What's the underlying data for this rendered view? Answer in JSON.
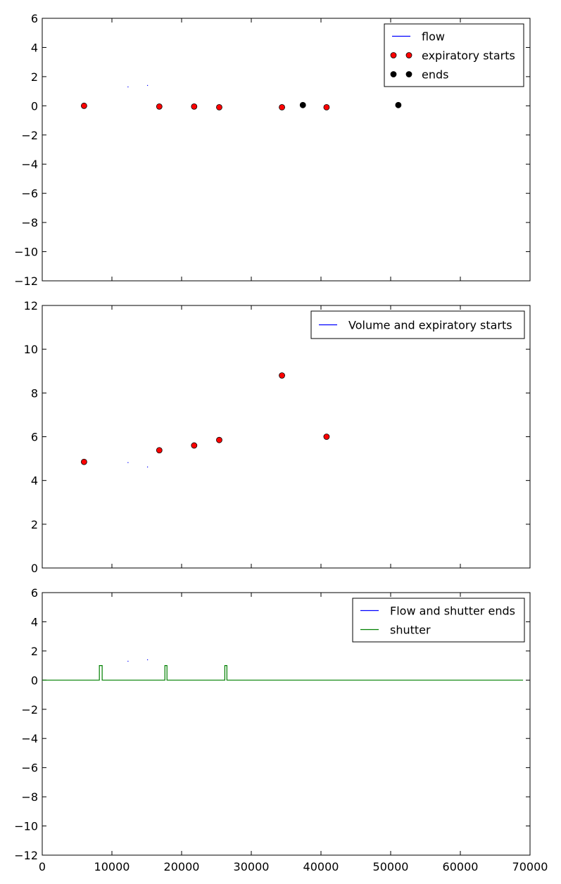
{
  "chart_data": [
    {
      "type": "line",
      "title": "",
      "xlabel": "",
      "ylabel": "",
      "xlim": [
        0,
        70000
      ],
      "ylim": [
        -12,
        6
      ],
      "yticks": [
        -12,
        -10,
        -8,
        -6,
        -4,
        -2,
        0,
        2,
        4,
        6
      ],
      "ytick_labels": [
        "−12",
        "−10",
        "−8",
        "−6",
        "−4",
        "−2",
        "0",
        "2",
        "4",
        "6"
      ],
      "xticks": [
        0,
        10000,
        20000,
        30000,
        40000,
        50000,
        60000,
        70000
      ],
      "show_xtick_labels": false,
      "legend_position": "top-right",
      "series": [
        {
          "name": "flow",
          "kind": "line",
          "color": "#0000ff",
          "points": [
            [
              12300,
              1.3
            ],
            [
              15100,
              1.4
            ]
          ]
        },
        {
          "name": "expiratory starts",
          "kind": "marker",
          "color": "#ff0000",
          "points": [
            [
              6000,
              0.0
            ],
            [
              16800,
              -0.05
            ],
            [
              21800,
              -0.05
            ],
            [
              25400,
              -0.1
            ],
            [
              34400,
              -0.1
            ],
            [
              40800,
              -0.1
            ]
          ]
        },
        {
          "name": "ends",
          "kind": "marker",
          "color": "#000000",
          "points": [
            [
              37400,
              0.05
            ],
            [
              51100,
              0.05
            ]
          ]
        }
      ]
    },
    {
      "type": "line",
      "title": "",
      "xlabel": "",
      "ylabel": "",
      "xlim": [
        0,
        70000
      ],
      "ylim": [
        0,
        12
      ],
      "yticks": [
        0,
        2,
        4,
        6,
        8,
        10,
        12
      ],
      "ytick_labels": [
        "0",
        "2",
        "4",
        "6",
        "8",
        "10",
        "12"
      ],
      "xticks": [
        0,
        10000,
        20000,
        30000,
        40000,
        50000,
        60000,
        70000
      ],
      "show_xtick_labels": false,
      "legend_position": "top-right",
      "series": [
        {
          "name": "Volume and expiratory starts",
          "kind": "line",
          "color": "#0000ff",
          "points": [
            [
              12300,
              4.82
            ],
            [
              15100,
              4.62
            ]
          ]
        },
        {
          "name": "",
          "kind": "marker",
          "color": "#ff0000",
          "points": [
            [
              6000,
              4.85
            ],
            [
              16800,
              5.38
            ],
            [
              21800,
              5.6
            ],
            [
              25400,
              5.85
            ],
            [
              34400,
              8.8
            ],
            [
              40800,
              6.0
            ]
          ]
        }
      ]
    },
    {
      "type": "line",
      "title": "",
      "xlabel": "",
      "ylabel": "",
      "xlim": [
        0,
        70000
      ],
      "ylim": [
        -12,
        6
      ],
      "yticks": [
        -12,
        -10,
        -8,
        -6,
        -4,
        -2,
        0,
        2,
        4,
        6
      ],
      "ytick_labels": [
        "−12",
        "−10",
        "−8",
        "−6",
        "−4",
        "−2",
        "0",
        "2",
        "4",
        "6"
      ],
      "xticks": [
        0,
        10000,
        20000,
        30000,
        40000,
        50000,
        60000,
        70000
      ],
      "xtick_labels": [
        "0",
        "10000",
        "20000",
        "30000",
        "40000",
        "50000",
        "60000",
        "70000"
      ],
      "show_xtick_labels": true,
      "legend_position": "top-right",
      "series": [
        {
          "name": "Flow and shutter ends",
          "kind": "line",
          "color": "#0000ff",
          "points": [
            [
              12300,
              1.3
            ],
            [
              15100,
              1.4
            ]
          ]
        },
        {
          "name": "shutter",
          "kind": "line",
          "color": "#008000",
          "points": [
            [
              0,
              0
            ],
            [
              8200,
              0
            ],
            [
              8200,
              1
            ],
            [
              8600,
              1
            ],
            [
              8600,
              0
            ],
            [
              17600,
              0
            ],
            [
              17600,
              1
            ],
            [
              17900,
              1
            ],
            [
              17900,
              0
            ],
            [
              26200,
              0
            ],
            [
              26200,
              1
            ],
            [
              26500,
              1
            ],
            [
              26500,
              0
            ],
            [
              69000,
              0
            ]
          ]
        }
      ]
    }
  ]
}
